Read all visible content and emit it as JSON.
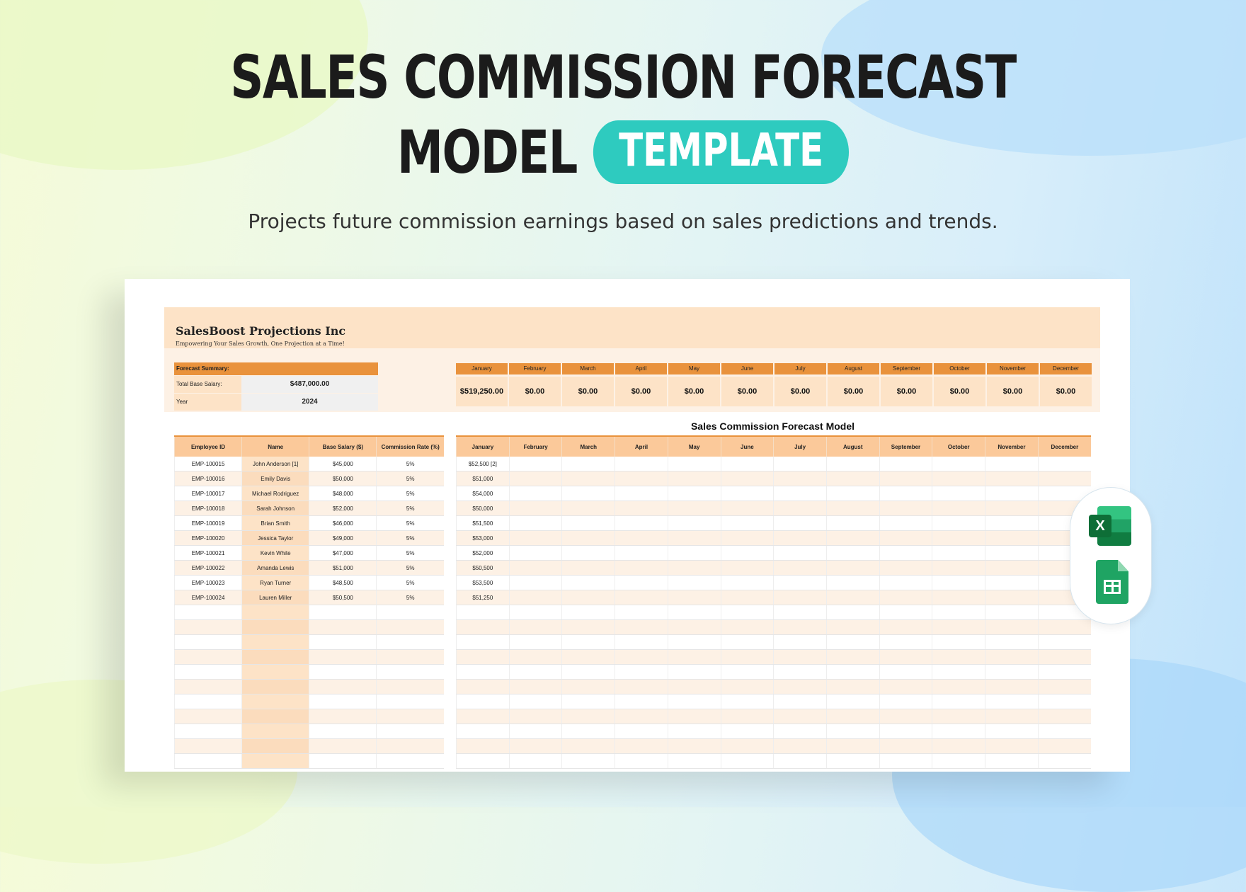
{
  "title": {
    "line1": "SALES COMMISSION FORECAST",
    "line2": "MODEL",
    "badge": "TEMPLATE"
  },
  "subtitle": "Projects future commission earnings based on sales predictions and trends.",
  "sheet": {
    "company": "SalesBoost Projections Inc",
    "tagline": "Empowering Your Sales Growth, One Projection at a Time!",
    "summary": {
      "title": "Forecast Summary:",
      "rows": [
        {
          "label": "Total Base Salary:",
          "value": "$487,000.00"
        },
        {
          "label": "Year",
          "value": "2024"
        }
      ]
    },
    "months": [
      "January",
      "February",
      "March",
      "April",
      "May",
      "June",
      "July",
      "August",
      "September",
      "October",
      "November",
      "December"
    ],
    "month_totals": [
      "$519,250.00",
      "$0.00",
      "$0.00",
      "$0.00",
      "$0.00",
      "$0.00",
      "$0.00",
      "$0.00",
      "$0.00",
      "$0.00",
      "$0.00",
      "$0.00"
    ],
    "table_title": "Sales Commission Forecast Model",
    "headers": [
      "Employee ID",
      "Name",
      "Base Salary ($)",
      "Commission Rate (%)"
    ],
    "employees": [
      {
        "id": "EMP-100015",
        "name": "John Anderson [1]",
        "salary": "$45,000",
        "rate": "5%",
        "jan": "$52,500 [2]"
      },
      {
        "id": "EMP-100016",
        "name": "Emily Davis",
        "salary": "$50,000",
        "rate": "5%",
        "jan": "$51,000"
      },
      {
        "id": "EMP-100017",
        "name": "Michael Rodriguez",
        "salary": "$48,000",
        "rate": "5%",
        "jan": "$54,000"
      },
      {
        "id": "EMP-100018",
        "name": "Sarah Johnson",
        "salary": "$52,000",
        "rate": "5%",
        "jan": "$50,000"
      },
      {
        "id": "EMP-100019",
        "name": "Brian Smith",
        "salary": "$46,000",
        "rate": "5%",
        "jan": "$51,500"
      },
      {
        "id": "EMP-100020",
        "name": "Jessica Taylor",
        "salary": "$49,000",
        "rate": "5%",
        "jan": "$53,000"
      },
      {
        "id": "EMP-100021",
        "name": "Kevin White",
        "salary": "$47,000",
        "rate": "5%",
        "jan": "$52,000"
      },
      {
        "id": "EMP-100022",
        "name": "Amanda Lewis",
        "salary": "$51,000",
        "rate": "5%",
        "jan": "$50,500"
      },
      {
        "id": "EMP-100023",
        "name": "Ryan Turner",
        "salary": "$48,500",
        "rate": "5%",
        "jan": "$53,500"
      },
      {
        "id": "EMP-100024",
        "name": "Lauren Miller",
        "salary": "$50,500",
        "rate": "5%",
        "jan": "$51,250"
      }
    ]
  },
  "apps": {
    "excel_icon": "excel-icon",
    "excel_letter": "X",
    "sheets_icon": "google-sheets-icon"
  },
  "colors": {
    "accent": "#2ecbbf",
    "header_orange": "#e9923c",
    "header_peach": "#fbc99a",
    "band": "#fde3c7",
    "light_band": "#fdf1e5"
  }
}
